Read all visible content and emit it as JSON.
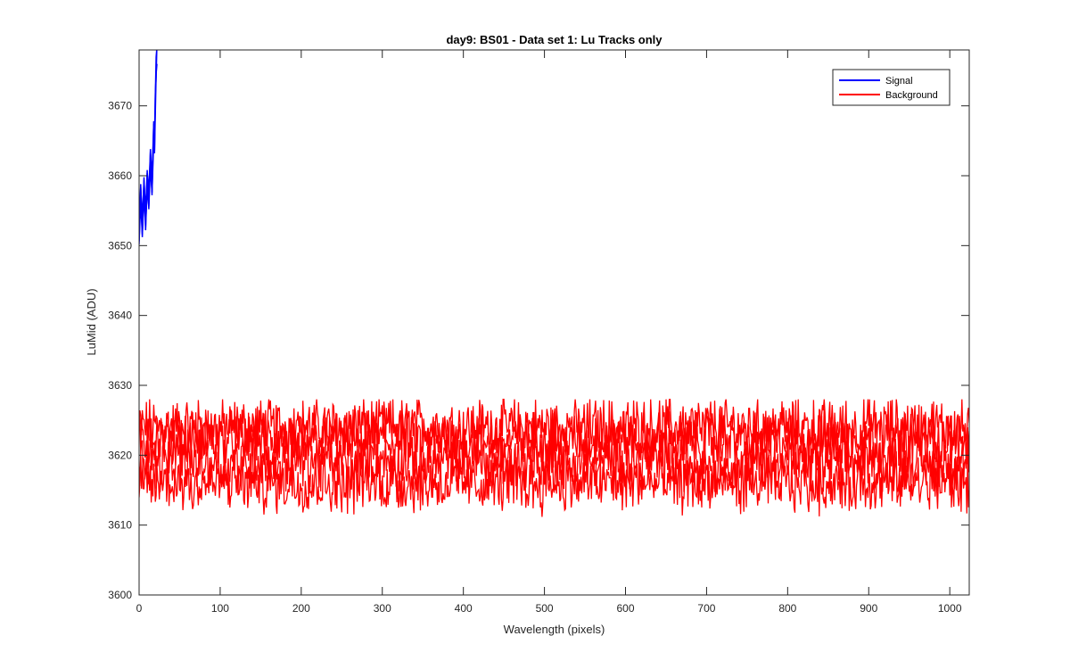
{
  "chart_data": {
    "type": "line",
    "title": "day9: BS01 - Data set 1: Lu Tracks only",
    "xlabel": "Wavelength (pixels)",
    "ylabel": "LuMid (ADU)",
    "xlim": [
      0,
      1024
    ],
    "ylim": [
      3600,
      3678
    ],
    "x_ticks": [
      0,
      100,
      200,
      300,
      400,
      500,
      600,
      700,
      800,
      900,
      1000
    ],
    "y_ticks": [
      3600,
      3610,
      3620,
      3630,
      3640,
      3650,
      3660,
      3670
    ],
    "grid": false,
    "legend_position": "top-right",
    "series": [
      {
        "name": "Signal",
        "color": "#0000ff",
        "description_points": {
          "x": [
            0,
            2,
            4,
            6,
            8,
            10,
            12,
            14,
            16,
            18,
            19,
            20,
            21,
            22
          ],
          "y": [
            3651,
            3658,
            3652,
            3659,
            3653,
            3660,
            3656,
            3663,
            3658,
            3667,
            3664,
            3671,
            3675,
            3678
          ]
        }
      },
      {
        "name": "Background",
        "color": "#ff0000",
        "lines": 4,
        "band_centers": [
          3624,
          3622,
          3619,
          3616
        ],
        "range": [
          3610,
          3628
        ]
      }
    ]
  }
}
